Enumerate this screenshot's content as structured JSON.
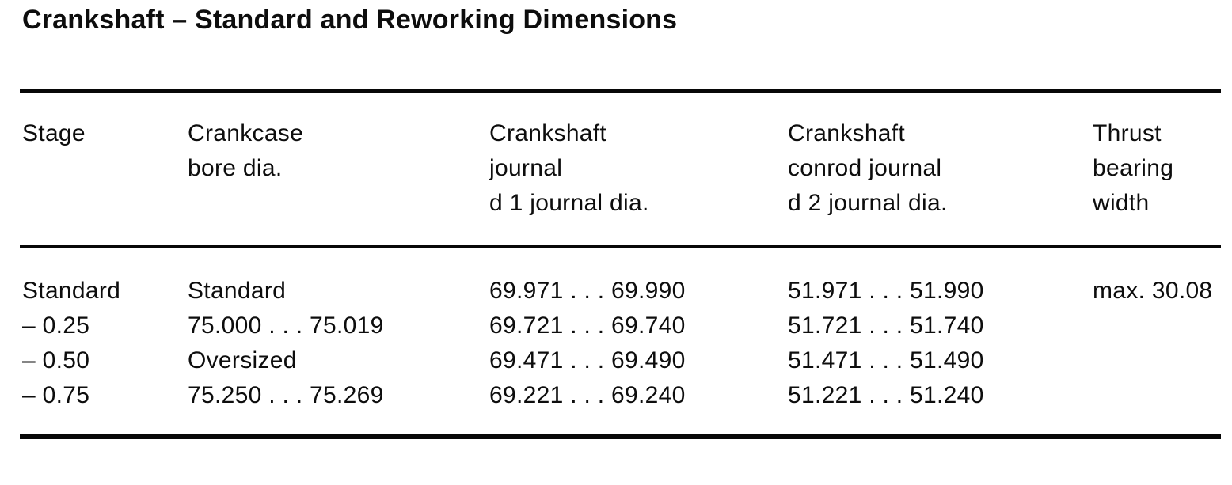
{
  "title": "Crankshaft – Standard and Reworking Dimensions",
  "table": {
    "headers": [
      "Stage",
      "Crankcase\nbore dia.",
      "Crankshaft\njournal\nd 1 journal dia.",
      "Crankshaft\nconrod journal\nd 2 journal dia.",
      "Thrust\nbearing\nwidth"
    ],
    "rows": [
      [
        "Standard",
        "Standard",
        "69.971 . . . 69.990",
        "51.971 . . . 51.990",
        "max. 30.08"
      ],
      [
        "– 0.25",
        "75.000 . . . 75.019",
        "69.721 . . . 69.740",
        "51.721 . . . 51.740",
        ""
      ],
      [
        "– 0.50",
        "Oversized",
        "69.471 . . . 69.490",
        "51.471 . . . 51.490",
        ""
      ],
      [
        "– 0.75",
        "75.250 . . . 75.269",
        "69.221 . . . 69.240",
        "51.221 . . . 51.240",
        ""
      ]
    ]
  },
  "colors": {
    "ink": "#0d0d0d",
    "paper": "#ffffff",
    "rule": "#070707"
  }
}
